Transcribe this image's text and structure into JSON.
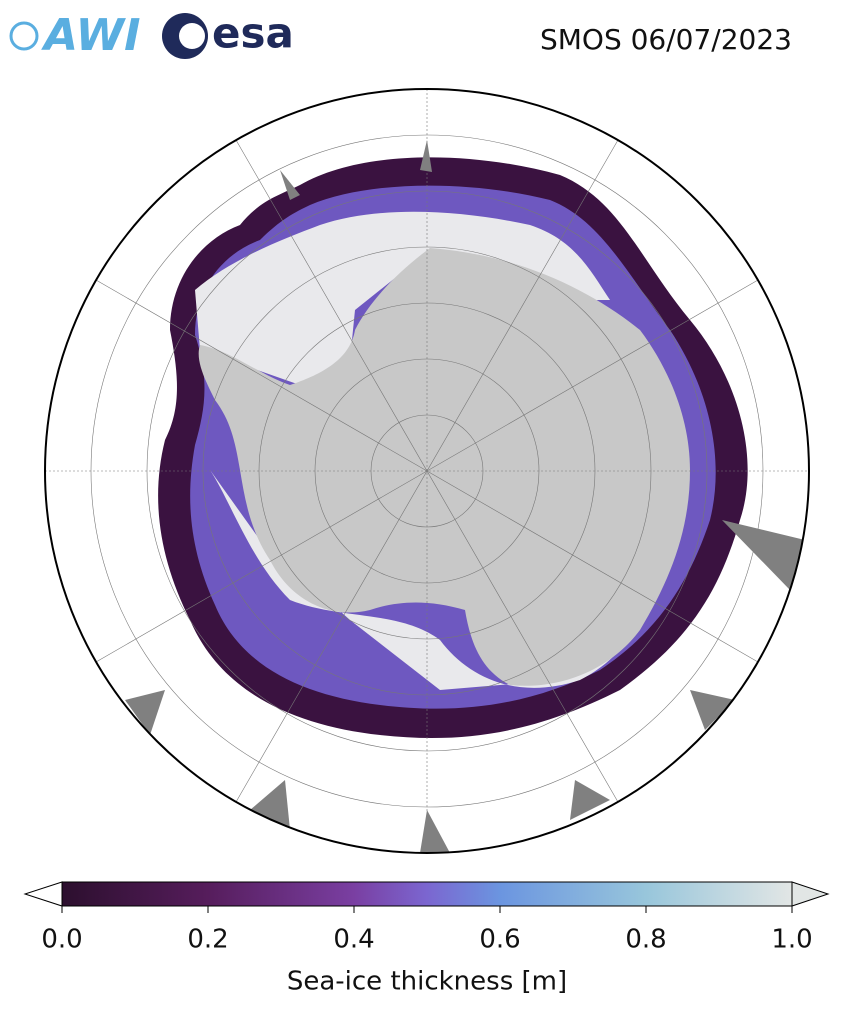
{
  "header": {
    "logo_awi": "AWI",
    "logo_esa": "esa",
    "title": "SMOS 06/07/2023"
  },
  "colorbar": {
    "lim": [
      0,
      1
    ],
    "ticks": [
      {
        "value": 0,
        "label": "0.0"
      },
      {
        "value": 0.2,
        "label": "0.2"
      },
      {
        "value": 0.4,
        "label": "0.4"
      },
      {
        "value": 0.6,
        "label": "0.6"
      },
      {
        "value": 0.8,
        "label": "0.8"
      },
      {
        "value": 1,
        "label": "1.0"
      }
    ],
    "label": "Sea-ice thickness [m]"
  }
}
